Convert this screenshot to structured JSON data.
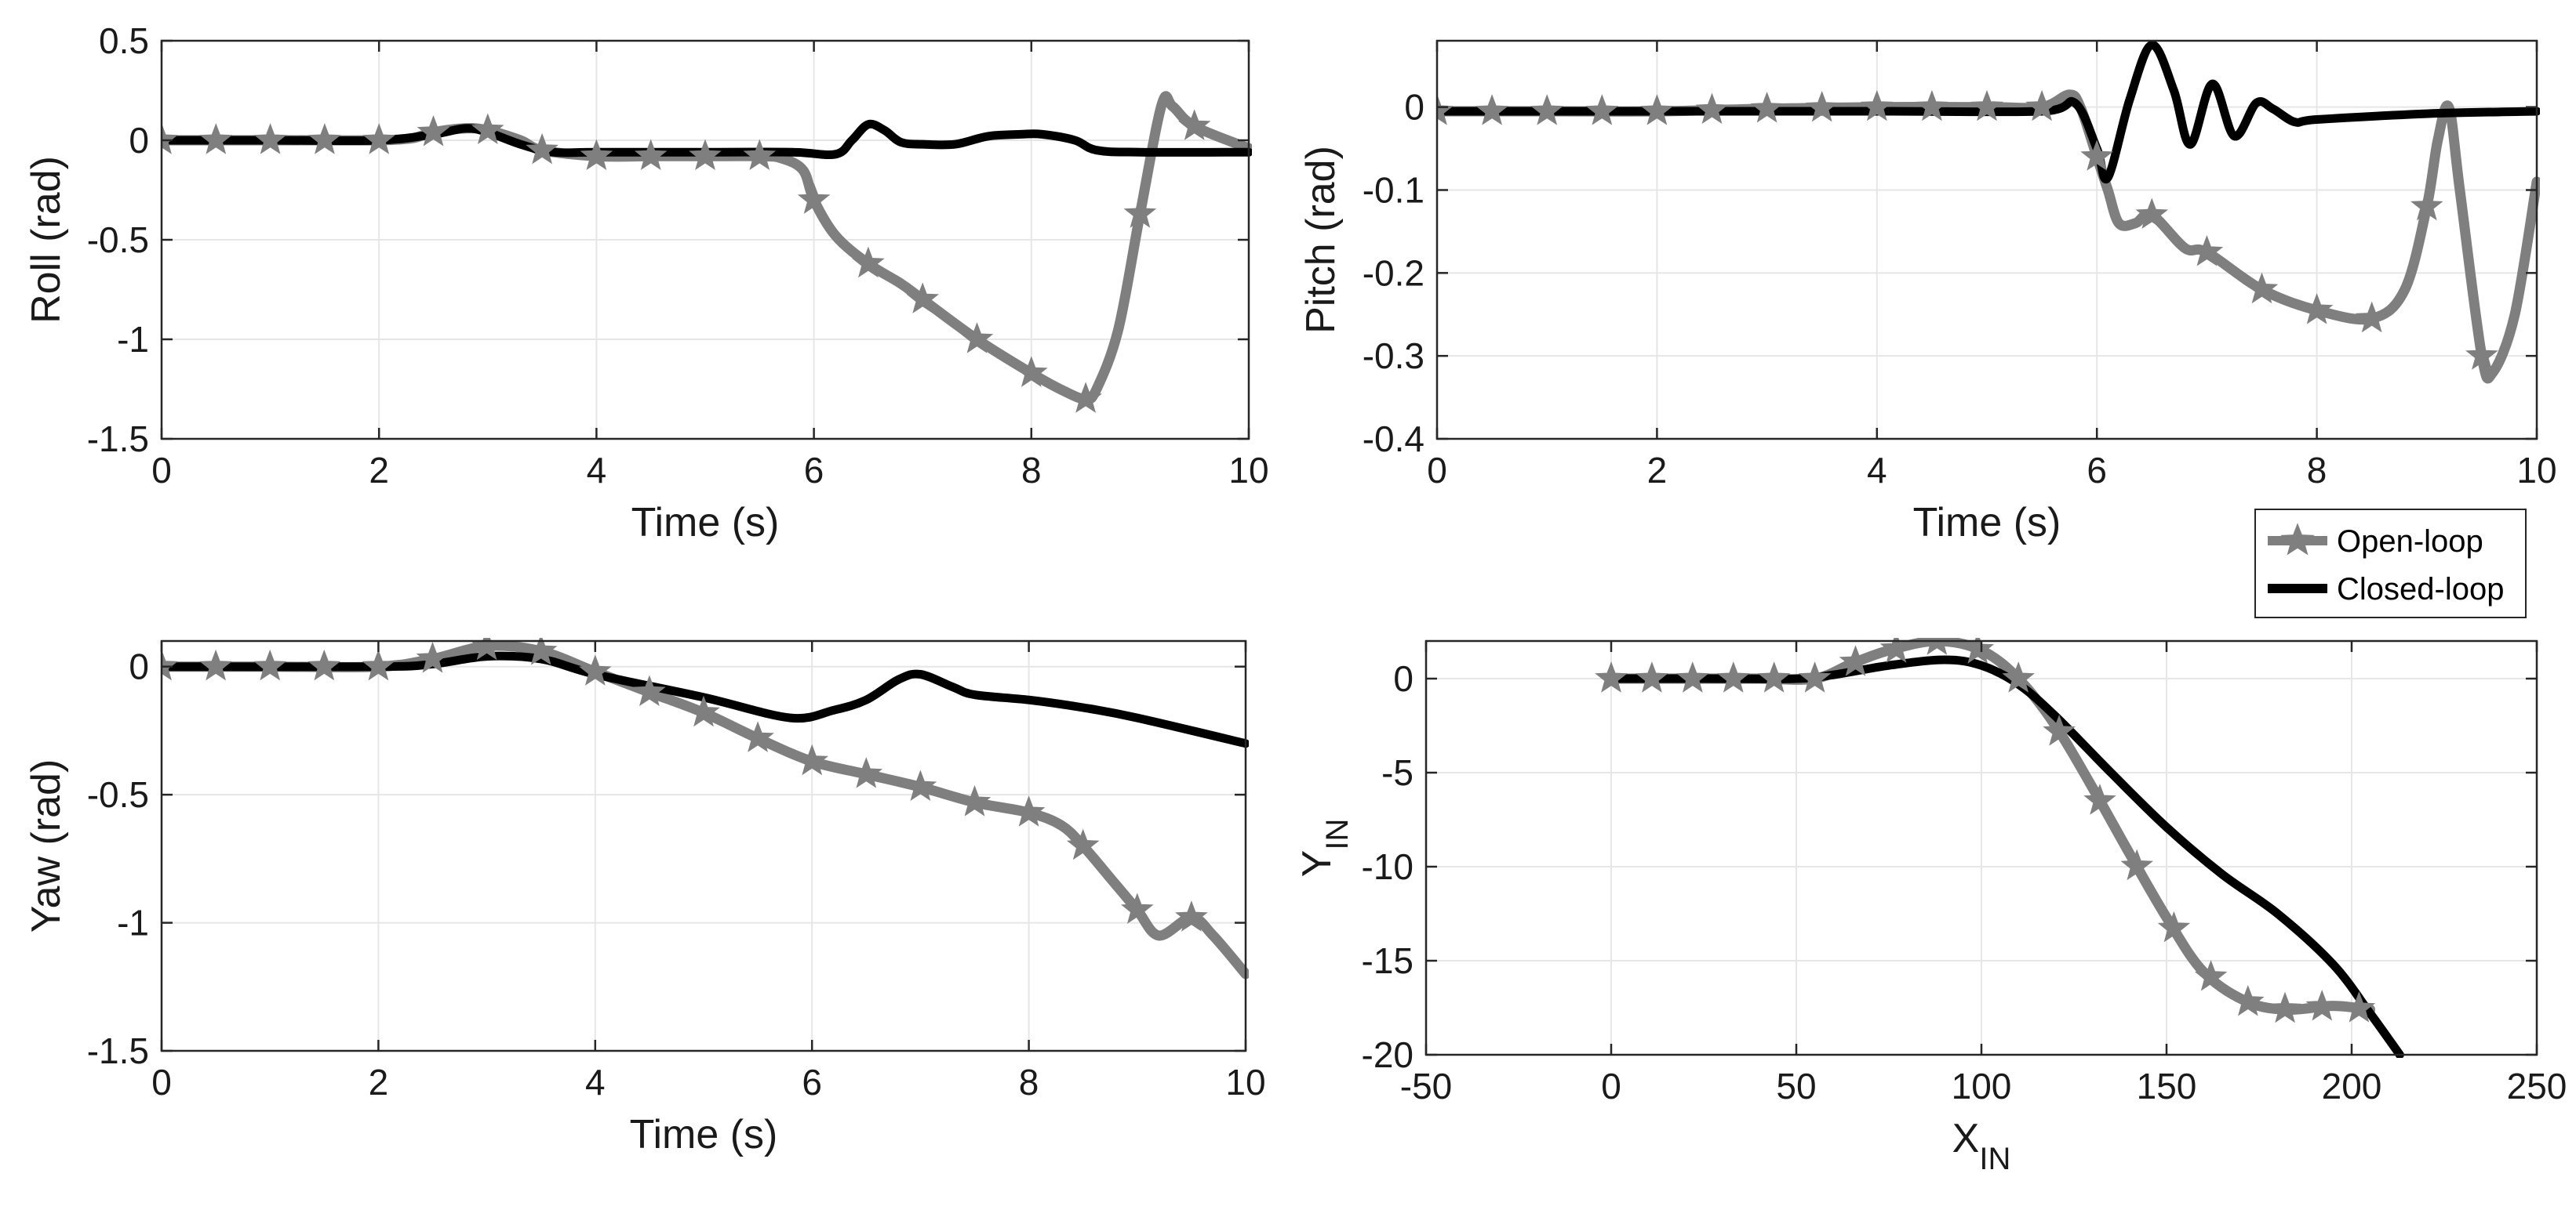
{
  "colors": {
    "open_loop": "#7f7f7f",
    "closed_loop": "#000000",
    "grid": "#e6e6e6",
    "axis": "#262626"
  },
  "legend": {
    "placement": "between-right-panels",
    "open_label": "Open-loop",
    "closed_label": "Closed-loop"
  },
  "chart_data": [
    {
      "type": "line",
      "panel": "roll",
      "xlabel": "Time (s)",
      "ylabel": "Roll (rad)",
      "xlim": [
        0,
        10
      ],
      "ylim": [
        -1.5,
        0.5
      ],
      "xticks": [
        0,
        2,
        4,
        6,
        8,
        10
      ],
      "yticks": [
        -1.5,
        -1,
        -0.5,
        0,
        0.5
      ],
      "xtick_labels": [
        "0",
        "2",
        "4",
        "6",
        "8",
        "10"
      ],
      "ytick_labels": [
        "-1.5",
        "-1",
        "-0.5",
        "0",
        "0.5"
      ],
      "grid": true,
      "series": [
        {
          "name": "Open-loop",
          "marker": "star",
          "x": [
            0,
            0.5,
            1,
            1.5,
            2,
            2.3,
            2.5,
            2.8,
            3,
            3.3,
            3.5,
            4,
            4.5,
            5,
            5.5,
            5.7,
            5.9,
            6,
            6.2,
            6.5,
            6.8,
            7,
            7.5,
            8,
            8.3,
            8.5,
            8.6,
            8.8,
            9,
            9.2,
            9.3,
            9.5,
            10
          ],
          "y": [
            0,
            0,
            0,
            0,
            0,
            0.01,
            0.04,
            0.06,
            0.05,
            0.0,
            -0.05,
            -0.08,
            -0.08,
            -0.08,
            -0.08,
            -0.09,
            -0.15,
            -0.3,
            -0.48,
            -0.62,
            -0.72,
            -0.8,
            -1.0,
            -1.17,
            -1.26,
            -1.3,
            -1.25,
            -0.95,
            -0.37,
            0.18,
            0.17,
            0.07,
            -0.04
          ],
          "marker_x": [
            0,
            0.5,
            1,
            1.5,
            2,
            2.5,
            3,
            3.5,
            4,
            4.5,
            5,
            5.5,
            6,
            6.5,
            7,
            7.5,
            8,
            8.5,
            9,
            9.5
          ]
        },
        {
          "name": "Closed-loop",
          "x": [
            0,
            1,
            2,
            2.5,
            2.8,
            3,
            3.3,
            3.6,
            4,
            5,
            5.8,
            6.2,
            6.35,
            6.5,
            6.65,
            6.8,
            7,
            7.3,
            7.6,
            7.9,
            8.1,
            8.4,
            8.6,
            9,
            10
          ],
          "y": [
            0,
            0,
            0,
            0.03,
            0.06,
            0.04,
            -0.02,
            -0.06,
            -0.06,
            -0.06,
            -0.06,
            -0.07,
            0.0,
            0.08,
            0.05,
            -0.01,
            -0.02,
            -0.02,
            0.02,
            0.03,
            0.03,
            0.0,
            -0.05,
            -0.06,
            -0.06
          ]
        }
      ]
    },
    {
      "type": "line",
      "panel": "pitch",
      "xlabel": "Time (s)",
      "ylabel": "Pitch (rad)",
      "xlim": [
        0,
        10
      ],
      "ylim": [
        -0.4,
        0.08
      ],
      "xticks": [
        0,
        2,
        4,
        6,
        8,
        10
      ],
      "yticks": [
        -0.4,
        -0.3,
        -0.2,
        -0.1,
        0
      ],
      "xtick_labels": [
        "0",
        "2",
        "4",
        "6",
        "8",
        "10"
      ],
      "ytick_labels": [
        "-0.4",
        "-0.3",
        "-0.2",
        "-0.1",
        "0"
      ],
      "grid": true,
      "series": [
        {
          "name": "Open-loop",
          "marker": "star",
          "x": [
            0,
            1,
            2,
            3,
            4,
            5,
            5.5,
            5.75,
            5.85,
            6,
            6.1,
            6.2,
            6.35,
            6.5,
            6.8,
            7,
            7.5,
            8,
            8.5,
            8.8,
            9,
            9.1,
            9.2,
            9.3,
            9.5,
            9.6,
            9.8,
            10
          ],
          "y": [
            -0.005,
            -0.005,
            -0.005,
            -0.002,
            0.0,
            0.0,
            0.0,
            0.015,
            0.0,
            -0.06,
            -0.1,
            -0.14,
            -0.14,
            -0.13,
            -0.17,
            -0.175,
            -0.22,
            -0.245,
            -0.255,
            -0.22,
            -0.12,
            -0.04,
            0.0,
            -0.1,
            -0.3,
            -0.32,
            -0.25,
            -0.09
          ],
          "marker_x": [
            0,
            0.5,
            1,
            1.5,
            2,
            2.5,
            3,
            3.5,
            4,
            4.5,
            5,
            5.5,
            6,
            6.5,
            7,
            7.5,
            8,
            8.5,
            9,
            9.5
          ]
        },
        {
          "name": "Closed-loop",
          "x": [
            0,
            2,
            4,
            5.5,
            5.8,
            6.0,
            6.1,
            6.3,
            6.5,
            6.7,
            6.85,
            7.05,
            7.25,
            7.45,
            7.6,
            7.8,
            8,
            9,
            10
          ],
          "y": [
            -0.005,
            -0.005,
            -0.005,
            -0.005,
            0.005,
            -0.05,
            -0.085,
            0.01,
            0.075,
            0.02,
            -0.045,
            0.028,
            -0.035,
            0.005,
            -0.002,
            -0.018,
            -0.015,
            -0.008,
            -0.005
          ]
        }
      ]
    },
    {
      "type": "line",
      "panel": "yaw",
      "xlabel": "Time (s)",
      "ylabel": "Yaw (rad)",
      "xlim": [
        0,
        10
      ],
      "ylim": [
        -1.5,
        0.1
      ],
      "xticks": [
        0,
        2,
        4,
        6,
        8,
        10
      ],
      "yticks": [
        -1.5,
        -1,
        -0.5,
        0
      ],
      "xtick_labels": [
        "0",
        "2",
        "4",
        "6",
        "8",
        "10"
      ],
      "ytick_labels": [
        "-1.5",
        "-1",
        "-0.5",
        "0"
      ],
      "grid": true,
      "series": [
        {
          "name": "Open-loop",
          "marker": "star",
          "x": [
            0,
            1,
            2,
            2.5,
            3,
            3.5,
            4,
            4.5,
            5,
            5.5,
            6,
            6.5,
            7,
            7.5,
            8,
            8.3,
            8.5,
            8.8,
            9,
            9.2,
            9.5,
            9.7,
            10
          ],
          "y": [
            0,
            0,
            0,
            0.03,
            0.08,
            0.06,
            -0.02,
            -0.1,
            -0.18,
            -0.28,
            -0.37,
            -0.42,
            -0.47,
            -0.53,
            -0.57,
            -0.62,
            -0.7,
            -0.85,
            -0.95,
            -1.05,
            -0.98,
            -1.05,
            -1.2
          ],
          "marker_x": [
            0,
            0.5,
            1,
            1.5,
            2,
            2.5,
            3,
            3.5,
            4,
            4.5,
            5,
            5.5,
            6,
            6.5,
            7,
            7.5,
            8,
            8.5,
            9,
            9.5
          ]
        },
        {
          "name": "Closed-loop",
          "x": [
            0,
            2,
            2.5,
            3,
            3.5,
            4,
            5,
            5.8,
            6.2,
            6.5,
            6.8,
            7,
            7.3,
            7.5,
            8,
            8.5,
            9,
            10
          ],
          "y": [
            0,
            0,
            0.01,
            0.04,
            0.03,
            -0.03,
            -0.12,
            -0.2,
            -0.17,
            -0.13,
            -0.05,
            -0.03,
            -0.08,
            -0.11,
            -0.13,
            -0.16,
            -0.2,
            -0.3
          ]
        }
      ]
    },
    {
      "type": "line",
      "panel": "trajectory",
      "xlabel": "X",
      "xlabel_sub": "IN",
      "ylabel": "Y",
      "ylabel_sub": "IN",
      "xlim": [
        -50,
        250
      ],
      "ylim": [
        -20,
        2
      ],
      "xticks": [
        -50,
        0,
        50,
        100,
        150,
        200,
        250
      ],
      "yticks": [
        -20,
        -15,
        -10,
        -5,
        0
      ],
      "xtick_labels": [
        "-50",
        "0",
        "50",
        "100",
        "150",
        "200",
        "250"
      ],
      "ytick_labels": [
        "-20",
        "-15",
        "-10",
        "-5",
        "0"
      ],
      "grid": true,
      "series": [
        {
          "name": "Open-loop",
          "marker": "star",
          "x": [
            0,
            20,
            40,
            55,
            65,
            75,
            88,
            100,
            110,
            120,
            130,
            140,
            150,
            160,
            172,
            183,
            195,
            205
          ],
          "y": [
            0,
            0,
            0,
            0,
            0.8,
            1.5,
            2.0,
            1.5,
            0,
            -2.5,
            -5.8,
            -9.3,
            -12.7,
            -15.6,
            -17.2,
            -17.6,
            -17.4,
            -17.6
          ],
          "marker_x": [
            0,
            11,
            22,
            33,
            44,
            55,
            66,
            77,
            88,
            99,
            110,
            121,
            132,
            142,
            152,
            162,
            172,
            182,
            192,
            202
          ]
        },
        {
          "name": "Closed-loop",
          "x": [
            0,
            25,
            50,
            60,
            75,
            90,
            100,
            110,
            120,
            135,
            150,
            165,
            180,
            195,
            205,
            213
          ],
          "y": [
            0,
            0,
            0,
            0.2,
            0.7,
            1.0,
            0.7,
            -0.3,
            -2.0,
            -5.0,
            -7.9,
            -10.4,
            -12.5,
            -15.2,
            -17.8,
            -20
          ]
        }
      ]
    }
  ]
}
